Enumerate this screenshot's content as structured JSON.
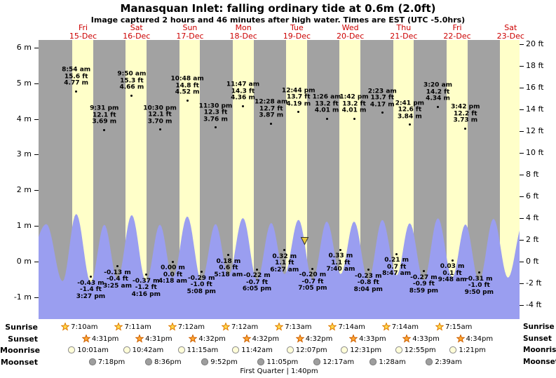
{
  "title": "Manasquan Inlet: falling ordinary tide at 0.6m (2.0ft)",
  "subtitle": "Image captured 2 hours and 46 minutes after high water. Times are EST (UTC -5.0hrs)",
  "chart_data": {
    "type": "area",
    "title": "Manasquan Inlet tide heights, 15-Dec to 23-Dec",
    "days": [
      {
        "name": "Fri",
        "date": "15-Dec"
      },
      {
        "name": "Sat",
        "date": "16-Dec"
      },
      {
        "name": "Sun",
        "date": "17-Dec"
      },
      {
        "name": "Mon",
        "date": "18-Dec"
      },
      {
        "name": "Tue",
        "date": "19-Dec"
      },
      {
        "name": "Wed",
        "date": "20-Dec"
      },
      {
        "name": "Thu",
        "date": "21-Dec"
      },
      {
        "name": "Fri",
        "date": "22-Dec"
      },
      {
        "name": "Sat",
        "date": "23-Dec"
      }
    ],
    "axis_left_m": [
      "6 m",
      "5 m",
      "4 m",
      "3 m",
      "2 m",
      "1 m",
      "0 m",
      "-1 m"
    ],
    "axis_right_ft": [
      "20 ft",
      "18 ft",
      "16 ft",
      "14 ft",
      "12 ft",
      "10 ft",
      "8 ft",
      "6 ft",
      "4 ft",
      "2 ft",
      "0 ft",
      "-2 ft",
      "-4 ft"
    ],
    "tide_events": [
      {
        "d": 0,
        "type": "high",
        "time": "8:54 am",
        "ft": "15.6 ft",
        "m": "4.77 m"
      },
      {
        "d": 0,
        "type": "low",
        "time": "3:27 pm",
        "ft": "-1.4 ft",
        "m": "-0.43 m"
      },
      {
        "d": 0,
        "type": "high",
        "time": "9:31 pm",
        "ft": "12.1 ft",
        "m": "3.69 m"
      },
      {
        "d": 1,
        "type": "low",
        "time": "3:25 am",
        "ft": "-0.4 ft",
        "m": "-0.13 m"
      },
      {
        "d": 1,
        "type": "high",
        "time": "9:50 am",
        "ft": "15.3 ft",
        "m": "4.66 m"
      },
      {
        "d": 1,
        "type": "low",
        "time": "4:16 pm",
        "ft": "-1.2 ft",
        "m": "-0.37 m"
      },
      {
        "d": 1,
        "type": "high",
        "time": "10:30 pm",
        "ft": "12.1 ft",
        "m": "3.70 m"
      },
      {
        "d": 2,
        "type": "low",
        "time": "4:18 am",
        "ft": "0.0 ft",
        "m": "0.00 m"
      },
      {
        "d": 2,
        "type": "high",
        "time": "10:48 am",
        "ft": "14.8 ft",
        "m": "4.52 m"
      },
      {
        "d": 2,
        "type": "low",
        "time": "5:08 pm",
        "ft": "-1.0 ft",
        "m": "-0.29 m"
      },
      {
        "d": 2,
        "type": "high",
        "time": "11:30 pm",
        "ft": "12.3 ft",
        "m": "3.76 m"
      },
      {
        "d": 3,
        "type": "low",
        "time": "5:18 am",
        "ft": "0.6 ft",
        "m": "0.18 m"
      },
      {
        "d": 3,
        "type": "high",
        "time": "11:47 am",
        "ft": "14.3 ft",
        "m": "4.36 m"
      },
      {
        "d": 3,
        "type": "low",
        "time": "6:05 pm",
        "ft": "-0.7 ft",
        "m": "-0.22 m"
      },
      {
        "d": 4,
        "type": "high",
        "time": "12:28 am",
        "ft": "12.7 ft",
        "m": "3.87 m"
      },
      {
        "d": 4,
        "type": "low",
        "time": "6:27 am",
        "ft": "1.1 ft",
        "m": "0.32 m"
      },
      {
        "d": 4,
        "type": "high",
        "time": "12:44 pm",
        "ft": "13.7 ft",
        "m": "4.19 m"
      },
      {
        "d": 4,
        "type": "low",
        "time": "7:05 pm",
        "ft": "-0.7 ft",
        "m": "-0.20 m"
      },
      {
        "d": 5,
        "type": "high",
        "time": "1:26 am",
        "ft": "13.2 ft",
        "m": "4.01 m"
      },
      {
        "d": 5,
        "type": "low",
        "time": "7:40 am",
        "ft": "1.1 ft",
        "m": "0.33 m"
      },
      {
        "d": 5,
        "type": "high",
        "time": "1:42 pm",
        "ft": "13.2 ft",
        "m": "4.01 m"
      },
      {
        "d": 5,
        "type": "low",
        "time": "8:04 pm",
        "ft": "-0.8 ft",
        "m": "-0.23 m"
      },
      {
        "d": 6,
        "type": "high",
        "time": "2:23 am",
        "ft": "13.7 ft",
        "m": "4.17 m"
      },
      {
        "d": 6,
        "type": "low",
        "time": "8:47 am",
        "ft": "0.7 ft",
        "m": "0.21 m"
      },
      {
        "d": 6,
        "type": "high",
        "time": "2:41 pm",
        "ft": "12.6 ft",
        "m": "3.84 m"
      },
      {
        "d": 6,
        "type": "low",
        "time": "8:59 pm",
        "ft": "-0.9 ft",
        "m": "-0.27 m"
      },
      {
        "d": 7,
        "type": "high",
        "time": "3:20 am",
        "ft": "14.2 ft",
        "m": "4.34 m"
      },
      {
        "d": 7,
        "type": "low",
        "time": "9:48 am",
        "ft": "0.1 ft",
        "m": "0.03 m"
      },
      {
        "d": 7,
        "type": "high",
        "time": "3:42 pm",
        "ft": "12.2 ft",
        "m": "3.73 m"
      },
      {
        "d": 7,
        "type": "low",
        "time": "9:50 pm",
        "ft": "-1.0 ft",
        "m": "-0.31 m"
      }
    ],
    "current_marker": {
      "t_hours": 119.5,
      "height_m": 0.6
    },
    "wave_boundary": {
      "pre": [
        {
          "t": -7,
          "h": -0.4
        },
        {
          "t": 3.5,
          "h": 1.05
        },
        {
          "t": 10.8,
          "h": -0.55
        }
      ],
      "post": [
        {
          "t": 204.3,
          "h": 1.2
        },
        {
          "t": 210.8,
          "h": -0.45
        },
        {
          "t": 217.5,
          "h": 1.05
        }
      ]
    }
  },
  "astro": {
    "rows": [
      {
        "id": "sunrise",
        "label": "Sunrise",
        "icon": "star",
        "items": [
          {
            "time": "7:10am",
            "d": 0
          },
          {
            "time": "7:11am",
            "d": 1
          },
          {
            "time": "7:12am",
            "d": 2
          },
          {
            "time": "7:12am",
            "d": 3
          },
          {
            "time": "7:13am",
            "d": 4
          },
          {
            "time": "7:14am",
            "d": 5
          },
          {
            "time": "7:14am",
            "d": 6
          },
          {
            "time": "7:15am",
            "d": 7
          }
        ]
      },
      {
        "id": "sunset",
        "label": "Sunset",
        "icon": "star",
        "items": [
          {
            "time": "4:31pm",
            "d": 0
          },
          {
            "time": "4:31pm",
            "d": 1
          },
          {
            "time": "4:32pm",
            "d": 2
          },
          {
            "time": "4:32pm",
            "d": 3
          },
          {
            "time": "4:32pm",
            "d": 4
          },
          {
            "time": "4:33pm",
            "d": 5
          },
          {
            "time": "4:33pm",
            "d": 6
          },
          {
            "time": "4:34pm",
            "d": 7
          }
        ]
      },
      {
        "id": "moonrise",
        "label": "Moonrise",
        "icon": "moon",
        "items": [
          {
            "time": "10:01am",
            "d": 0
          },
          {
            "time": "10:42am",
            "d": 1
          },
          {
            "time": "11:15am",
            "d": 2
          },
          {
            "time": "11:42am",
            "d": 3
          },
          {
            "time": "12:07pm",
            "d": 4
          },
          {
            "time": "12:31pm",
            "d": 5
          },
          {
            "time": "12:55pm",
            "d": 6
          },
          {
            "time": "1:21pm",
            "d": 7
          }
        ]
      },
      {
        "id": "moonset",
        "label": "Moonset",
        "icon": "moon",
        "items": [
          {
            "time": "7:18pm",
            "d": 0
          },
          {
            "time": "8:36pm",
            "d": 1
          },
          {
            "time": "9:52pm",
            "d": 2
          },
          {
            "time": "11:05pm",
            "d": 3
          },
          {
            "time": "12:17am",
            "d": 5
          },
          {
            "time": "1:28am",
            "d": 6
          },
          {
            "time": "2:39am",
            "d": 7
          }
        ]
      }
    ],
    "footer": "First Quarter | 1:40pm"
  },
  "colors": {
    "night_bg": "#a2a2a2",
    "day_bg": "#ffffc9",
    "wave": "#9a9ef0",
    "day_label": "#cc0000",
    "marker_fill": "#e8c83c",
    "marker_stroke": "#333333",
    "icons": {
      "sunrise": {
        "fill": "#ffd94d",
        "stroke": "#e07b00"
      },
      "sunset": {
        "fill": "#ffa733",
        "stroke": "#cc5f00"
      },
      "moonrise": {
        "fill": "#fffdd8",
        "stroke": "#8a8a8a"
      },
      "moonset": {
        "fill": "#9e9e9e",
        "stroke": "#7a7a7a"
      }
    }
  }
}
